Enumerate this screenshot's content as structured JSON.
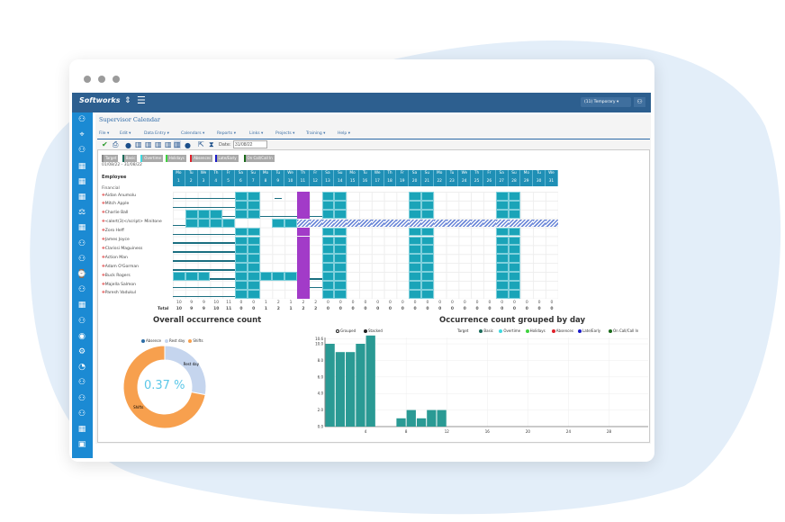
{
  "header": {
    "logo": "Softworks",
    "user_badge": "(11) Temporary"
  },
  "page_title": "Supervisor Calendar",
  "menu": [
    "File ▾",
    "Edit ▾",
    "Data Entry ▾",
    "Calendars ▾",
    "Reports ▾",
    "Links ▾",
    "Projects ▾",
    "Training ▾",
    "Help ▾"
  ],
  "toolbar": {
    "date_label": "Date:",
    "date_value": "31/08/22"
  },
  "legend_chips": [
    {
      "label": "Target",
      "color": "#888888"
    },
    {
      "label": "Basic",
      "color": "#1b6b5a"
    },
    {
      "label": "Overtime",
      "color": "#3fd9e0"
    },
    {
      "label": "Holidays",
      "color": "#3ed23e"
    },
    {
      "label": "Absences",
      "color": "#e0202a"
    },
    {
      "label": "Late/Early",
      "color": "#1a1ac8"
    },
    {
      "label": "On Call/Call In",
      "color": "#1a6a1a"
    }
  ],
  "date_range": "01/08/22 - 31/08/22",
  "calendar": {
    "employee_header": "Employee",
    "group": "Financial",
    "total_label": "Total",
    "day_names": [
      "Mo",
      "Tu",
      "We",
      "Th",
      "Fr",
      "Sa",
      "Su",
      "Mo",
      "Tu",
      "We",
      "Th",
      "Fr",
      "Sa",
      "Su",
      "Mo",
      "Tu",
      "We",
      "Th",
      "Fr",
      "Sa",
      "Su",
      "Mo",
      "Tu",
      "We",
      "Th",
      "Fr",
      "Sa",
      "Su",
      "Mo",
      "Tu",
      "We"
    ],
    "employees": [
      {
        "name": "Aidan Anumolu",
        "cells": "LLLLLSS.l.P.SS.....SS.....SS..."
      },
      {
        "name": "Mitch Apple",
        "cells": "LLLLLSS...P.SS.....SS.....SS..."
      },
      {
        "name": "Charlie Ball",
        "cells": ".SSSLSSLLLPLSS.....SS.....SS..."
      },
      {
        "name": "<alert(3)</script> Minitone",
        "cells": "LSSSS...SSHHHHHHHHHHHHHHHHHHHHH"
      },
      {
        "name": "Zoro Heff",
        "cells": "LLLLLSS...P.SS.....SS.....SS..."
      },
      {
        "name": "James Joyce",
        "cells": "LLLLLSS...P.SS.....SS.....SS..."
      },
      {
        "name": "Clarissi Maguiness",
        "cells": "LLLLLSS...P.SS.....SS.....SS..."
      },
      {
        "name": "Action Man",
        "cells": "LLLLLSS...P.SS.....SS.....SS..."
      },
      {
        "name": "Adam O'Gorman",
        "cells": "LLLLLSS...P.SS.....SS.....SS..."
      },
      {
        "name": "Buck Rogers",
        "cells": "SSSLLSSSSSPLSS.....SS.....SS..."
      },
      {
        "name": "Majella Salmon",
        "cells": "LLLLLSS...PLSS.....SS.....SS..."
      },
      {
        "name": "Paresh Vadukul",
        "cells": "LLLLLSS...P.SS.....SS.....SS..."
      }
    ],
    "counts": [
      10,
      9,
      9,
      10,
      11,
      0,
      0,
      1,
      2,
      1,
      2,
      2,
      0,
      0,
      0,
      0,
      0,
      0,
      0,
      0,
      0,
      0,
      0,
      0,
      0,
      0,
      0,
      0,
      0,
      0,
      0
    ],
    "totals": [
      10,
      9,
      9,
      10,
      11,
      0,
      0,
      1,
      2,
      1,
      2,
      2,
      0,
      0,
      0,
      0,
      0,
      0,
      0,
      0,
      0,
      0,
      0,
      0,
      0,
      0,
      0,
      0,
      0,
      0,
      0
    ]
  },
  "colors": {
    "shift": "#1aa4b8",
    "absence": "#a23bc8",
    "line": "#1a6e80"
  },
  "chart_data": [
    {
      "type": "pie",
      "title": "Overall occurrence count",
      "center_label": "0.37 %",
      "legend": [
        {
          "label": "Absence",
          "color": "#2c6da6"
        },
        {
          "label": "Rest day",
          "color": "#c5d5ee"
        },
        {
          "label": "Shifts",
          "color": "#f7a04e"
        }
      ],
      "slices": [
        {
          "label": "Rest day",
          "value": 28,
          "color": "#c5d5ee"
        },
        {
          "label": "Shifts",
          "value": 72,
          "color": "#f7a04e"
        }
      ]
    },
    {
      "type": "bar",
      "title": "Occurrence count grouped by day",
      "modes": [
        "Grouped",
        "Stacked"
      ],
      "legend": [
        "Target",
        "Basic",
        "Overtime",
        "Holidays",
        "Absences",
        "Late/Early",
        "On Call/Call In"
      ],
      "x": [
        1,
        2,
        3,
        4,
        5,
        6,
        7,
        8,
        9,
        10,
        11,
        12
      ],
      "values": [
        10,
        9,
        9,
        10,
        11,
        0,
        0,
        1,
        2,
        1,
        2,
        2
      ],
      "yticks": [
        "0.0",
        "2.0",
        "4.0",
        "6.0",
        "8.0",
        "10.0",
        "10.6"
      ],
      "ytick_values": [
        0,
        2,
        4,
        6,
        8,
        10,
        10.6
      ],
      "xticks": [
        4,
        8,
        12,
        16,
        20,
        24,
        28
      ],
      "xlim": [
        0,
        31
      ],
      "ylim": [
        0,
        10.6
      ]
    }
  ]
}
